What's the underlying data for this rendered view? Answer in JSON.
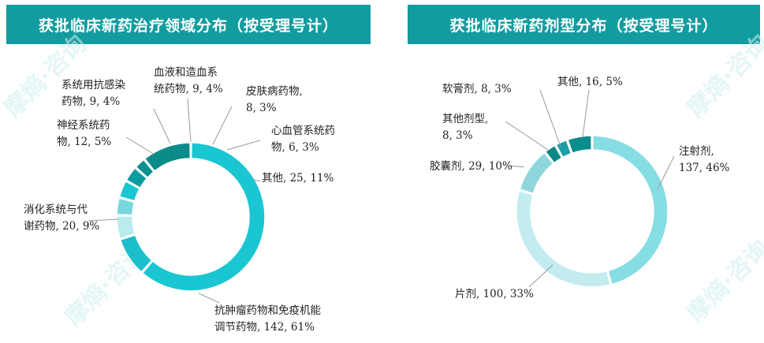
{
  "chart_data": [
    {
      "type": "pie",
      "title": "获批临床新药治疗领域分布（按受理号计）",
      "categories": [
        "抗肿瘤药物和免疫机能调节药物",
        "消化系统与代谢药物",
        "神经系统药物",
        "系统用抗感染药物",
        "血液和造血系统药物",
        "皮肤病药物",
        "心血管系统药物",
        "其他"
      ],
      "values": [
        142,
        20,
        12,
        9,
        9,
        8,
        6,
        25
      ],
      "percents": [
        "61%",
        "9%",
        "5%",
        "4%",
        "4%",
        "3%",
        "3%",
        "11%"
      ],
      "colors": [
        "#19c6d1",
        "#1bbfcc",
        "#b9ebef",
        "#7ad6dd",
        "#19c6d1",
        "#0a9c9f",
        "#07918f",
        "#0b8b8a"
      ],
      "labels": [
        [
          "抗肿瘤药物和免疫机能",
          "调节药物, 142, 61%"
        ],
        [
          "消化系统与代",
          "谢药物, 20, 9%"
        ],
        [
          "神经系统药",
          "物, 12, 5%"
        ],
        [
          "系统用抗感染",
          "药物, 9, 4%"
        ],
        [
          "血液和造血系",
          "统药物, 9, 4%"
        ],
        [
          "皮肤病药物,",
          "8, 3%"
        ],
        [
          "心血管系统药",
          "物, 6, 3%"
        ],
        [
          "其他, 25, 11%"
        ]
      ]
    },
    {
      "type": "pie",
      "title": "获批临床新药剂型分布（按受理号计）",
      "categories": [
        "注射剂",
        "片剂",
        "胶囊剂",
        "其他剂型",
        "软膏剂",
        "其他"
      ],
      "values": [
        137,
        100,
        29,
        8,
        8,
        16
      ],
      "percents": [
        "46%",
        "33%",
        "10%",
        "3%",
        "3%",
        "5%"
      ],
      "colors": [
        "#86dde3",
        "#c2ecf0",
        "#8fd6dc",
        "#0b8886",
        "#1a9ea3",
        "#0b8d8b"
      ],
      "labels": [
        [
          "注射剂,",
          "137, 46%"
        ],
        [
          "片剂, 100, 33%"
        ],
        [
          "胶囊剂, 29, 10%"
        ],
        [
          "其他剂型,",
          "8, 3%"
        ],
        [
          "软膏剂, 8, 3%"
        ],
        [
          "其他, 16, 5%"
        ]
      ]
    }
  ],
  "watermark": "摩熵·咨询"
}
